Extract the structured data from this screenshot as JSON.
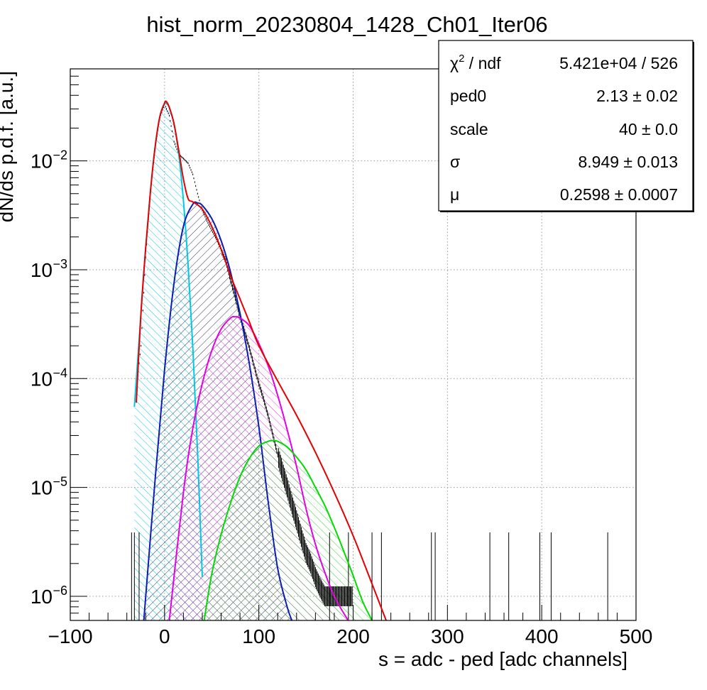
{
  "chart_data": {
    "type": "line",
    "title": "hist_norm_20230804_1428_Ch01_Iter06",
    "xlabel": "s = adc - ped [adc channels]",
    "ylabel": "dN/ds p.d.f. [a.u.]",
    "xlim": [
      -100,
      500
    ],
    "ylim": [
      6e-07,
      0.07
    ],
    "y_scale": "log",
    "grid": true,
    "x_ticks": [
      -100,
      0,
      100,
      200,
      300,
      400,
      500
    ],
    "x_tick_labels": [
      "−100",
      "0",
      "100",
      "200",
      "300",
      "400",
      "500"
    ],
    "y_ticks": [
      {
        "value": 0.01,
        "base": "10",
        "exp": "−2"
      },
      {
        "value": 0.001,
        "base": "10",
        "exp": "−3"
      },
      {
        "value": 0.0001,
        "base": "10",
        "exp": "−4"
      },
      {
        "value": 1e-05,
        "base": "10",
        "exp": "−5"
      },
      {
        "value": 1e-06,
        "base": "10",
        "exp": "−6"
      }
    ],
    "stats_box": {
      "placement": "top-right",
      "rows": [
        {
          "label": "χ",
          "label_sup": "2",
          "label_rest": " / ndf",
          "value": "5.421e+04 / 526"
        },
        {
          "label": "ped0",
          "value": "2.13 ± 0.02"
        },
        {
          "label": "scale",
          "value": "40 ± 0.0"
        },
        {
          "label": "σ",
          "value": "8.949 ± 0.013"
        },
        {
          "label": "μ",
          "value": "0.2598 ± 0.0007"
        }
      ]
    },
    "components": [
      {
        "color": "#00c8e6",
        "fill": true,
        "x": [
          -32,
          -25,
          -20,
          -15,
          -10,
          -5,
          0,
          2,
          5,
          10,
          15,
          20,
          25,
          30,
          35,
          40
        ],
        "y": [
          5.5e-05,
          0.0004,
          0.0016,
          0.0052,
          0.0135,
          0.0255,
          0.0335,
          0.0335,
          0.031,
          0.022,
          0.0115,
          0.0043,
          0.0011,
          0.00019,
          2.1e-05,
          1.5e-06
        ]
      },
      {
        "color": "#0a1eb4",
        "fill": true,
        "x": [
          -22,
          -10,
          0,
          10,
          20,
          30,
          35,
          40,
          50,
          60,
          70,
          80,
          90,
          100,
          110,
          120,
          130,
          135
        ],
        "y": [
          6e-07,
          1.2e-05,
          0.00012,
          0.00075,
          0.0025,
          0.004,
          0.0041,
          0.0039,
          0.00295,
          0.00185,
          0.00095,
          0.0004,
          0.000135,
          3.6e-05,
          7.3e-06,
          1.8e-06,
          8e-07,
          6e-07
        ]
      },
      {
        "color": "#e600e6",
        "fill": true,
        "x": [
          5,
          20,
          30,
          40,
          50,
          60,
          70,
          75,
          80,
          90,
          100,
          110,
          120,
          130,
          140,
          150,
          160,
          170,
          180,
          190,
          195
        ],
        "y": [
          6e-07,
          9e-06,
          3.5e-05,
          9e-05,
          0.00018,
          0.000285,
          0.00036,
          0.00037,
          0.00036,
          0.000305,
          0.00021,
          0.00013,
          7e-05,
          3.4e-05,
          1.55e-05,
          6.4e-06,
          3e-06,
          1.65e-06,
          1e-06,
          7e-07,
          6e-07
        ]
      },
      {
        "color": "#00dc00",
        "fill": true,
        "x": [
          42,
          50,
          60,
          70,
          80,
          90,
          100,
          110,
          115,
          120,
          130,
          140,
          150,
          160,
          170,
          180,
          190,
          200,
          210,
          220
        ],
        "y": [
          6e-07,
          1.6e-06,
          3.7e-06,
          7.2e-06,
          1.25e-05,
          1.85e-05,
          2.4e-05,
          2.65e-05,
          2.7e-05,
          2.65e-05,
          2.35e-05,
          1.9e-05,
          1.45e-05,
          1e-05,
          6.8e-06,
          4.3e-06,
          2.6e-06,
          1.55e-06,
          9e-07,
          6e-07
        ]
      }
    ],
    "total_fit": {
      "color": "#e60000",
      "x": [
        -30,
        -25,
        -20,
        -15,
        -10,
        -5,
        0,
        2,
        5,
        10,
        15,
        20,
        25,
        30,
        40,
        50,
        60,
        70,
        80,
        90,
        100,
        120,
        140,
        160,
        180,
        200,
        220,
        235
      ],
      "y": [
        6e-05,
        0.0004,
        0.0016,
        0.0052,
        0.0135,
        0.0255,
        0.034,
        0.035,
        0.031,
        0.022,
        0.0125,
        0.0068,
        0.0045,
        0.0042,
        0.0036,
        0.0025,
        0.00155,
        0.00088,
        0.00054,
        0.00033,
        0.0002,
        9.5e-05,
        4.6e-05,
        2.1e-05,
        9e-06,
        3.6e-06,
        1.3e-06,
        6e-07
      ]
    },
    "data_points": {
      "color": "#000000",
      "x": [
        -30,
        -25,
        -20,
        -15,
        -10,
        -5,
        0,
        5,
        10,
        15,
        20,
        25,
        30,
        35,
        40,
        45,
        50,
        55,
        60,
        65,
        70,
        75,
        80,
        85,
        90,
        95,
        100,
        105,
        110,
        115,
        120,
        125,
        130,
        135,
        140,
        145,
        150,
        155,
        160,
        165,
        170,
        175,
        180,
        185,
        190,
        195,
        200
      ],
      "y": [
        8e-05,
        0.0002,
        0.0013,
        0.005,
        0.013,
        0.025,
        0.033,
        0.026,
        0.015,
        0.0115,
        0.0105,
        0.0095,
        0.0075,
        0.005,
        0.0035,
        0.0028,
        0.0023,
        0.0019,
        0.0015,
        0.0012,
        0.0008,
        0.00055,
        0.00037,
        0.00027,
        0.00019,
        0.00013,
        9e-05,
        6.5e-05,
        4.5e-05,
        3e-05,
        2e-05,
        1.4e-05,
        1e-05,
        7e-06,
        5e-06,
        3.5e-06,
        2.5e-06,
        2e-06,
        1.5e-06,
        1.2e-06,
        1e-06,
        1e-06,
        1e-06,
        1e-06,
        1e-06,
        1e-06,
        1e-06
      ]
    },
    "sparse_bins": [
      -35,
      -32,
      -27,
      175,
      195,
      220,
      230,
      283,
      287,
      345,
      365,
      398,
      410,
      470
    ]
  }
}
